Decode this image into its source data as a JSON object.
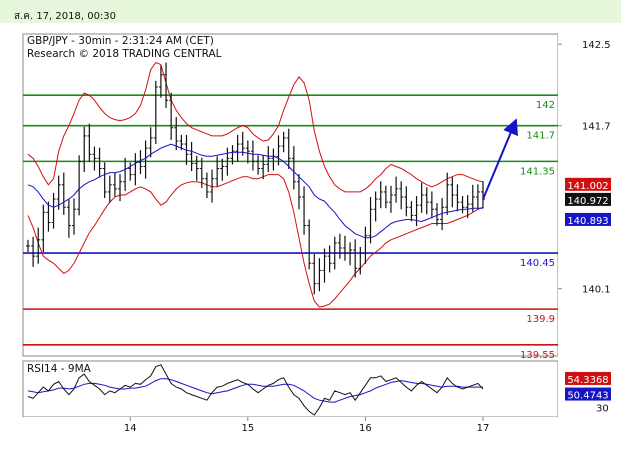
{
  "date_header": "ส.ค. 17, 2018, 00:30",
  "chart_data": {
    "type": "line",
    "title": "GBP/JPY - 30min - 2:31:24 AM (CET)",
    "subtitle": "Research © 2018 TRADING CENTRAL",
    "price_axis": {
      "ylim": [
        139.44,
        142.6
      ],
      "ticks": [
        "142.5",
        "141.7",
        "140.1"
      ]
    },
    "x_ticks": [
      "14",
      "15",
      "16",
      "17"
    ],
    "horizontal_levels": [
      {
        "label": "142",
        "value": 142.0,
        "color": "#1a8a1a"
      },
      {
        "label": "141.7",
        "value": 141.7,
        "color": "#1a8a1a"
      },
      {
        "label": "141.35",
        "value": 141.35,
        "color": "#1a8a1a"
      },
      {
        "label": "140.45",
        "value": 140.45,
        "color": "#1515c8"
      },
      {
        "label": "139.9",
        "value": 139.9,
        "color": "#d01010"
      },
      {
        "label": "139.55",
        "value": 139.55,
        "color": "#d01010"
      }
    ],
    "price_badges": [
      {
        "label": "141.002",
        "value": 141.002,
        "bg": "#d01010",
        "fg": "#ffffff"
      },
      {
        "label": "140.972",
        "value": 140.972,
        "bg": "#111111",
        "fg": "#ffffff"
      },
      {
        "label": "140.893",
        "value": 140.893,
        "bg": "#1515c8",
        "fg": "#ffffff"
      }
    ],
    "price_series": {
      "name": "GBP/JPY close",
      "values": [
        140.52,
        140.42,
        140.58,
        140.85,
        140.75,
        140.98,
        141.12,
        140.9,
        140.72,
        140.88,
        141.35,
        141.6,
        141.42,
        141.38,
        141.28,
        141.05,
        141.12,
        141.08,
        141.15,
        141.28,
        141.22,
        141.34,
        141.3,
        141.48,
        141.58,
        142.08,
        142.2,
        141.95,
        141.68,
        141.55,
        141.52,
        141.42,
        141.33,
        141.28,
        141.18,
        141.05,
        141.18,
        141.28,
        141.3,
        141.38,
        141.45,
        141.52,
        141.48,
        141.45,
        141.35,
        141.28,
        141.32,
        141.38,
        141.4,
        141.5,
        141.58,
        141.38,
        141.15,
        141.0,
        140.72,
        140.35,
        140.15,
        140.28,
        140.42,
        140.35,
        140.55,
        140.5,
        140.45,
        140.48,
        140.3,
        140.45,
        140.62,
        140.88,
        140.98,
        141.05,
        140.95,
        141.02,
        141.08,
        141.0,
        140.9,
        140.82,
        140.92,
        141.02,
        140.95,
        140.88,
        140.78,
        140.9,
        141.12,
        141.02,
        140.95,
        140.9,
        140.93,
        141.0,
        141.05,
        140.98
      ]
    },
    "sma_series": {
      "name": "moving average",
      "values": [
        141.12,
        141.1,
        141.05,
        140.98,
        140.92,
        140.9,
        140.92,
        140.95,
        140.98,
        141.02,
        141.08,
        141.12,
        141.15,
        141.17,
        141.2,
        141.22,
        141.24,
        141.24,
        141.25,
        141.27,
        141.3,
        141.33,
        141.36,
        141.38,
        141.42,
        141.45,
        141.48,
        141.5,
        141.52,
        141.5,
        141.48,
        141.46,
        141.45,
        141.43,
        141.41,
        141.4,
        141.4,
        141.41,
        141.42,
        141.43,
        141.44,
        141.44,
        141.44,
        141.43,
        141.42,
        141.42,
        141.41,
        141.4,
        141.4,
        141.38,
        141.35,
        141.3,
        141.25,
        141.2,
        141.15,
        141.1,
        141.02,
        140.98,
        140.96,
        140.9,
        140.85,
        140.78,
        140.72,
        140.68,
        140.64,
        140.62,
        140.6,
        140.6,
        140.62,
        140.66,
        140.7,
        140.74,
        140.76,
        140.77,
        140.78,
        140.78,
        140.77,
        140.76,
        140.78,
        140.8,
        140.82,
        140.84,
        140.85,
        140.86,
        140.87,
        140.88,
        140.88,
        140.89,
        140.89,
        140.89
      ]
    },
    "upper_band": [
      141.42,
      141.38,
      141.3,
      141.2,
      141.12,
      141.18,
      141.45,
      141.6,
      141.7,
      141.82,
      141.95,
      142.02,
      142.0,
      141.95,
      141.88,
      141.82,
      141.78,
      141.76,
      141.75,
      141.76,
      141.78,
      141.82,
      141.9,
      142.05,
      142.25,
      142.32,
      142.3,
      142.12,
      141.95,
      141.85,
      141.78,
      141.72,
      141.68,
      141.66,
      141.64,
      141.62,
      141.6,
      141.6,
      141.6,
      141.62,
      141.65,
      141.68,
      141.7,
      141.68,
      141.62,
      141.58,
      141.55,
      141.56,
      141.62,
      141.7,
      141.85,
      141.98,
      142.1,
      142.18,
      142.12,
      141.95,
      141.65,
      141.45,
      141.3,
      141.2,
      141.12,
      141.08,
      141.05,
      141.05,
      141.05,
      141.05,
      141.08,
      141.12,
      141.18,
      141.22,
      141.28,
      141.32,
      141.3,
      141.28,
      141.25,
      141.22,
      141.18,
      141.15,
      141.12,
      141.1,
      141.12,
      141.15,
      141.18,
      141.2,
      141.22,
      141.22,
      141.2,
      141.18,
      141.16,
      141.15
    ],
    "lower_band": [
      140.82,
      140.7,
      140.55,
      140.42,
      140.38,
      140.35,
      140.3,
      140.25,
      140.28,
      140.35,
      140.45,
      140.55,
      140.65,
      140.72,
      140.8,
      140.88,
      140.95,
      141.0,
      141.02,
      141.02,
      141.05,
      141.08,
      141.1,
      141.08,
      141.05,
      140.98,
      140.92,
      140.95,
      141.02,
      141.08,
      141.12,
      141.14,
      141.15,
      141.15,
      141.14,
      141.12,
      141.1,
      141.1,
      141.12,
      141.14,
      141.16,
      141.18,
      141.2,
      141.2,
      141.18,
      141.18,
      141.2,
      141.22,
      141.22,
      141.22,
      141.18,
      141.05,
      140.85,
      140.6,
      140.35,
      140.15,
      139.98,
      139.92,
      139.93,
      139.95,
      140.0,
      140.06,
      140.12,
      140.18,
      140.25,
      140.3,
      140.36,
      140.42,
      140.46,
      140.5,
      140.55,
      140.58,
      140.6,
      140.62,
      140.64,
      140.66,
      140.68,
      140.7,
      140.72,
      140.74,
      140.74,
      140.74,
      140.74,
      140.76,
      140.78,
      140.8,
      140.82,
      140.85,
      140.88,
      140.9
    ],
    "projection_arrow": {
      "from": [
        89,
        140.98
      ],
      "to": [
        95,
        141.7
      ]
    },
    "rsi": {
      "title": "RSI14 - 9MA",
      "ylim": [
        20,
        80
      ],
      "ticks": [
        "30"
      ],
      "badges": [
        {
          "label": "54.3368",
          "value": 54.3368,
          "bg": "#d01010",
          "fg": "#ffffff"
        },
        {
          "label": "50.4743",
          "value": 50.4743,
          "bg": "#1515c8",
          "fg": "#ffffff"
        }
      ],
      "rsi_values": [
        42,
        40,
        46,
        52,
        48,
        55,
        58,
        50,
        44,
        50,
        62,
        66,
        58,
        54,
        50,
        44,
        48,
        46,
        50,
        54,
        52,
        56,
        55,
        60,
        64,
        74,
        76,
        66,
        56,
        52,
        50,
        46,
        44,
        42,
        40,
        38,
        46,
        52,
        53,
        56,
        58,
        60,
        57,
        55,
        50,
        46,
        50,
        54,
        56,
        60,
        62,
        52,
        44,
        40,
        32,
        26,
        22,
        30,
        40,
        38,
        48,
        46,
        44,
        46,
        38,
        46,
        54,
        62,
        62,
        64,
        58,
        60,
        62,
        57,
        52,
        48,
        54,
        58,
        54,
        50,
        46,
        52,
        62,
        56,
        52,
        50,
        52,
        54,
        56,
        50
      ],
      "ma_values": [
        48,
        47,
        46,
        47,
        48,
        49,
        51,
        51,
        50,
        51,
        53,
        55,
        56,
        56,
        55,
        54,
        52,
        51,
        50,
        50,
        51,
        51,
        52,
        53,
        56,
        59,
        61,
        61,
        60,
        58,
        56,
        54,
        52,
        50,
        48,
        46,
        45,
        46,
        47,
        48,
        50,
        52,
        54,
        55,
        55,
        54,
        53,
        53,
        53,
        54,
        55,
        55,
        54,
        51,
        48,
        44,
        40,
        38,
        37,
        36,
        36,
        38,
        40,
        42,
        43,
        44,
        46,
        48,
        51,
        53,
        55,
        57,
        58,
        59,
        58,
        57,
        56,
        56,
        55,
        54,
        53,
        52,
        53,
        53,
        53,
        52,
        52,
        52,
        52,
        52
      ]
    }
  }
}
